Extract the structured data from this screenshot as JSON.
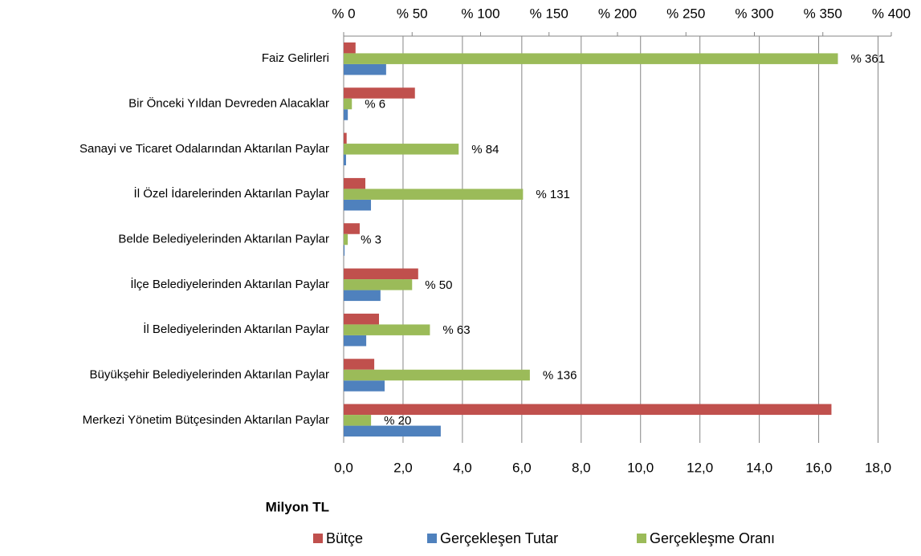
{
  "chart_data": {
    "type": "bar",
    "orientation": "horizontal",
    "categories": [
      "Faiz Gelirleri",
      "Bir Önceki Yıldan Devreden Alacaklar",
      "Sanayi ve Ticaret Odalarından Aktarılan Paylar",
      "İl Özel İdarelerinden Aktarılan Paylar",
      "Belde Belediyelerinden Aktarılan Paylar",
      "İlçe Belediyelerinden Aktarılan Paylar",
      "İl Belediyelerinden Aktarılan Paylar",
      "Büyükşehir Belediyelerinden Aktarılan Paylar",
      "Merkezi Yönetim Bütçesinden Aktarılan Paylar"
    ],
    "series": [
      {
        "name": "Bütçe",
        "color": "#c0504d",
        "values": [
          0.4,
          2.4,
          0.1,
          0.73,
          0.54,
          2.51,
          1.19,
          1.03,
          16.43
        ]
      },
      {
        "name": "Gerçekleşen Tutar",
        "color": "#4f81bd",
        "values": [
          1.43,
          0.14,
          0.08,
          0.92,
          0.03,
          1.24,
          0.76,
          1.38,
          3.27
        ]
      },
      {
        "name": "Gerçekleşme Oranı",
        "color": "#9bbb59",
        "axis": "x2",
        "values": [
          361,
          6,
          84,
          131,
          3,
          50,
          63,
          136,
          20
        ],
        "value_labels": [
          "% 361",
          "% 6",
          "% 84",
          "% 131",
          "% 3",
          "% 50",
          "% 63",
          "% 136",
          "% 20"
        ]
      }
    ],
    "xlabel": "Milyon TL",
    "xlim": [
      0,
      18.5
    ],
    "xticks": [
      {
        "value": 0,
        "label": "0,0"
      },
      {
        "value": 2,
        "label": "2,0"
      },
      {
        "value": 4,
        "label": "4,0"
      },
      {
        "value": 6,
        "label": "6,0"
      },
      {
        "value": 8,
        "label": "8,0"
      },
      {
        "value": 10,
        "label": "10,0"
      },
      {
        "value": 12,
        "label": "12,0"
      },
      {
        "value": 14,
        "label": "14,0"
      },
      {
        "value": 16,
        "label": "16,0"
      },
      {
        "value": 18,
        "label": "18,0"
      }
    ],
    "x2lim": [
      0,
      400
    ],
    "x2ticks": [
      {
        "value": 0,
        "label": "% 0"
      },
      {
        "value": 50,
        "label": "% 50"
      },
      {
        "value": 100,
        "label": "% 100"
      },
      {
        "value": 150,
        "label": "% 150"
      },
      {
        "value": 200,
        "label": "% 200"
      },
      {
        "value": 250,
        "label": "% 250"
      },
      {
        "value": 300,
        "label": "% 300"
      },
      {
        "value": 350,
        "label": "% 350"
      },
      {
        "value": 400,
        "label": "% 400"
      }
    ],
    "grid": true,
    "legend": "bottom"
  }
}
